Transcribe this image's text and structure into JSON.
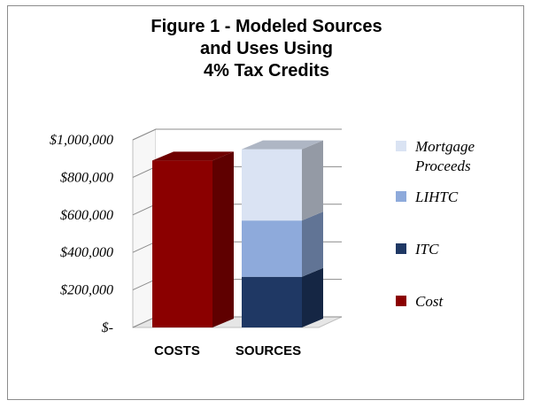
{
  "chart_data": {
    "type": "bar",
    "stacked": true,
    "three_d": true,
    "title_lines": [
      "Figure 1 - Modeled Sources",
      "and Uses Using",
      "4% Tax Credits"
    ],
    "categories": [
      "COSTS",
      "SOURCES"
    ],
    "y_ticks": [
      "$-",
      "$200,000",
      "$400,000",
      "$600,000",
      "$800,000",
      "$1,000,000"
    ],
    "y_tick_values": [
      0,
      200000,
      400000,
      600000,
      800000,
      1000000
    ],
    "ylim": [
      0,
      1000000
    ],
    "grid": true,
    "legend_position": "right",
    "series": [
      {
        "name": "Cost",
        "values": [
          890000,
          0
        ],
        "color": "#8b0000"
      },
      {
        "name": "ITC",
        "values": [
          0,
          270000
        ],
        "color": "#1f3864"
      },
      {
        "name": "LIHTC",
        "values": [
          0,
          300000
        ],
        "color": "#8eaadb"
      },
      {
        "name": "Mortgage Proceeds",
        "legend_lines": [
          "Mortgage",
          "Proceeds"
        ],
        "values": [
          0,
          380000
        ],
        "color": "#dae3f3"
      }
    ],
    "legend_order": [
      "Mortgage Proceeds",
      "LIHTC",
      "ITC",
      "Cost"
    ]
  }
}
